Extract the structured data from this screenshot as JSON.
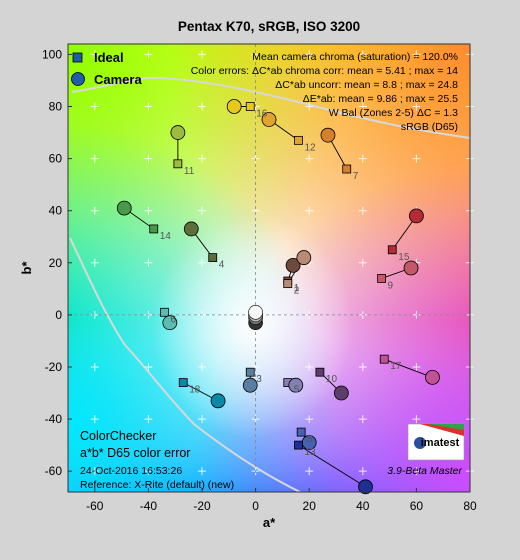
{
  "chart_data": {
    "type": "scatter",
    "title": "Pentax K70, sRGB, ISO 3200",
    "xlabel": "a*",
    "ylabel": "b*",
    "xlim": [
      -70,
      80
    ],
    "ylim": [
      -68,
      104
    ],
    "xticks": [
      -60,
      -40,
      -20,
      0,
      20,
      40,
      60,
      80
    ],
    "yticks": [
      -60,
      -40,
      -20,
      0,
      20,
      40,
      60,
      80,
      100
    ],
    "legend": {
      "position": "top-left",
      "items": [
        {
          "name": "Ideal",
          "marker": "square"
        },
        {
          "name": "Camera",
          "marker": "circle"
        }
      ]
    },
    "patches": [
      {
        "id": "1",
        "ideal": [
          12,
          13
        ],
        "camera": [
          14,
          19
        ],
        "color": "#6f4a3c"
      },
      {
        "id": "2",
        "ideal": [
          12,
          12
        ],
        "camera": [
          18,
          22
        ],
        "color": "#b98b74"
      },
      {
        "id": "3",
        "ideal": [
          -2,
          -22
        ],
        "camera": [
          -2,
          -27
        ],
        "color": "#5a7ea2"
      },
      {
        "id": "4",
        "ideal": [
          -16,
          22
        ],
        "camera": [
          -24,
          33
        ],
        "color": "#5c6e3c"
      },
      {
        "id": "5",
        "ideal": [
          12,
          -26
        ],
        "camera": [
          15,
          -27
        ],
        "color": "#8380b4"
      },
      {
        "id": "6",
        "ideal": [
          -34,
          1
        ],
        "camera": [
          -32,
          -3
        ],
        "color": "#5bbcb0"
      },
      {
        "id": "7",
        "ideal": [
          34,
          56
        ],
        "camera": [
          27,
          69
        ],
        "color": "#d67f2c"
      },
      {
        "id": "8",
        "ideal": [
          17,
          -45
        ],
        "camera": [
          20,
          -49
        ],
        "color": "#4660b2"
      },
      {
        "id": "9",
        "ideal": [
          47,
          14
        ],
        "camera": [
          58,
          18
        ],
        "color": "#c35867"
      },
      {
        "id": "10",
        "ideal": [
          24,
          -22
        ],
        "camera": [
          32,
          -30
        ],
        "color": "#5e3c6c"
      },
      {
        "id": "11",
        "ideal": [
          -29,
          58
        ],
        "camera": [
          -29,
          70
        ],
        "color": "#9dbc3e"
      },
      {
        "id": "12",
        "ideal": [
          16,
          67
        ],
        "camera": [
          5,
          75
        ],
        "color": "#e0a32e"
      },
      {
        "id": "13",
        "ideal": [
          16,
          -50
        ],
        "camera": [
          41,
          -66
        ],
        "color": "#1f2f96"
      },
      {
        "id": "14",
        "ideal": [
          -38,
          33
        ],
        "camera": [
          -49,
          41
        ],
        "color": "#489a4a"
      },
      {
        "id": "15",
        "ideal": [
          51,
          25
        ],
        "camera": [
          60,
          38
        ],
        "color": "#b32b35"
      },
      {
        "id": "16",
        "ideal": [
          -2,
          80
        ],
        "camera": [
          -8,
          80
        ],
        "color": "#e8c81c"
      },
      {
        "id": "17",
        "ideal": [
          48,
          -17
        ],
        "camera": [
          66,
          -24
        ],
        "color": "#c05395"
      },
      {
        "id": "18",
        "ideal": [
          -27,
          -26
        ],
        "camera": [
          -14,
          -33
        ],
        "color": "#0a88a8"
      }
    ],
    "neutrals": [
      [
        0,
        -3
      ],
      [
        0,
        -1
      ],
      [
        0,
        0
      ],
      [
        0,
        1
      ]
    ]
  },
  "stats": {
    "line1": "Mean camera chroma (saturation) = 120.0%",
    "line2": "Color errors: ΔC*ab chroma corr:  mean = 5.41 ;  max = 14",
    "line3": "ΔC*ab uncorr:  mean = 8.8 ;  max = 24.8",
    "line4": "ΔE*ab:  mean = 9.86 ;  max = 25.5",
    "line5": "W Bal (Zones 2-5) ΔC = 1.3",
    "line6": "sRGB (D65)"
  },
  "footer": {
    "title1": "ColorChecker",
    "title2": "a*b* D65 color error",
    "date": "24-Oct-2016 16:53:26",
    "reference": "Reference: X-Rite (default) (new)",
    "version": "3.9-Beta  Master",
    "logo": "imatest"
  }
}
